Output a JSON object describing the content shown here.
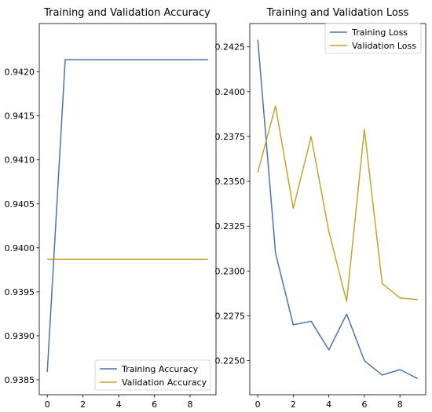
{
  "colors": {
    "training": "#4c72b0",
    "validation": "#c8a32a"
  },
  "chart_data": [
    {
      "type": "line",
      "title": "Training and Validation Accuracy",
      "xlabel": "",
      "ylabel": "",
      "x": [
        0,
        1,
        2,
        3,
        4,
        5,
        6,
        7,
        8,
        9
      ],
      "xlim": [
        -0.45,
        9.45
      ],
      "ylim": [
        0.93833,
        0.94255
      ],
      "xticks": [
        0,
        2,
        4,
        6,
        8
      ],
      "yticks": [
        0.9385,
        0.939,
        0.9395,
        0.94,
        0.9405,
        0.941,
        0.9415,
        0.942
      ],
      "ytick_labels": [
        "0.9385",
        "0.9390",
        "0.9395",
        "0.9400",
        "0.9405",
        "0.9410",
        "0.9415",
        "0.9420"
      ],
      "legend_loc": "lower right",
      "grid": false,
      "series": [
        {
          "name": "Training Accuracy",
          "color_key": "training",
          "values": [
            0.93859,
            0.94214,
            0.94214,
            0.94214,
            0.94214,
            0.94214,
            0.94214,
            0.94214,
            0.94214,
            0.94214
          ]
        },
        {
          "name": "Validation Accuracy",
          "color_key": "validation",
          "values": [
            0.93987,
            0.93987,
            0.93987,
            0.93987,
            0.93987,
            0.93987,
            0.93987,
            0.93987,
            0.93987,
            0.93987
          ]
        }
      ]
    },
    {
      "type": "line",
      "title": "Training and Validation Loss",
      "xlabel": "",
      "ylabel": "",
      "x": [
        0,
        1,
        2,
        3,
        4,
        5,
        6,
        7,
        8,
        9
      ],
      "xlim": [
        -0.45,
        9.45
      ],
      "ylim": [
        0.2231,
        0.2438
      ],
      "xticks": [
        0,
        2,
        4,
        6,
        8
      ],
      "yticks": [
        0.225,
        0.2275,
        0.23,
        0.2325,
        0.235,
        0.2375,
        0.24,
        0.2425
      ],
      "ytick_labels": [
        "0.2250",
        "0.2275",
        "0.2300",
        "0.2325",
        "0.2350",
        "0.2375",
        "0.2400",
        "0.2425"
      ],
      "legend_loc": "upper right",
      "grid": false,
      "series": [
        {
          "name": "Training Loss",
          "color_key": "training",
          "values": [
            0.2429,
            0.231,
            0.227,
            0.2272,
            0.2256,
            0.2276,
            0.225,
            0.2242,
            0.2245,
            0.224
          ]
        },
        {
          "name": "Validation Loss",
          "color_key": "validation",
          "values": [
            0.2355,
            0.2392,
            0.2335,
            0.2375,
            0.2322,
            0.2283,
            0.2379,
            0.2293,
            0.2285,
            0.2284
          ]
        }
      ]
    }
  ]
}
